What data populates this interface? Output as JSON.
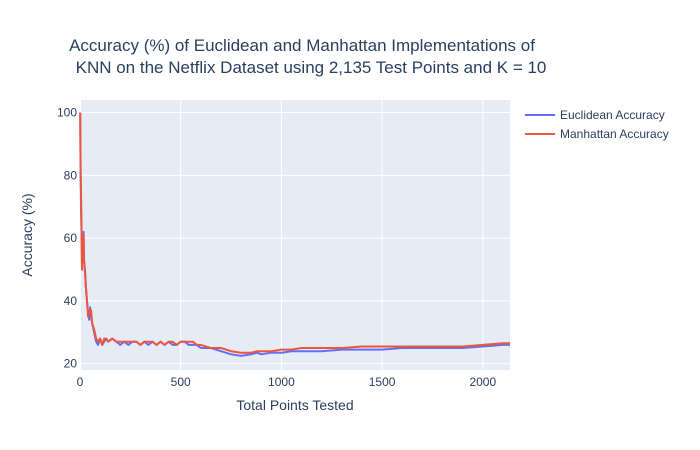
{
  "chart_data": {
    "type": "line",
    "title_lines": [
      "Accuracy (%) of Euclidean and Manhattan Implementations of",
      "KNN on the Netflix Dataset using 2,135 Test Points and K = 10"
    ],
    "xlabel": "Total Points Tested",
    "ylabel": "Accuracy (%)",
    "xlim": [
      0,
      2135
    ],
    "ylim": [
      18,
      104
    ],
    "x_ticks": [
      0,
      500,
      1000,
      1500,
      2000
    ],
    "y_ticks": [
      20,
      40,
      60,
      80,
      100
    ],
    "grid": true,
    "legend_position": "top-right",
    "background_color": "#e5ecf6",
    "series": [
      {
        "name": "Euclidean Accuracy",
        "color": "#636efa",
        "x": [
          1,
          2,
          3,
          5,
          8,
          10,
          12,
          15,
          18,
          20,
          25,
          30,
          35,
          40,
          45,
          50,
          55,
          60,
          70,
          80,
          90,
          100,
          110,
          120,
          130,
          140,
          160,
          180,
          200,
          220,
          240,
          260,
          280,
          300,
          320,
          340,
          360,
          380,
          400,
          420,
          440,
          460,
          480,
          500,
          520,
          540,
          560,
          580,
          600,
          650,
          700,
          750,
          800,
          850,
          880,
          900,
          950,
          1000,
          1050,
          1100,
          1200,
          1300,
          1400,
          1500,
          1600,
          1700,
          1800,
          1900,
          2000,
          2100,
          2135
        ],
        "y": [
          100,
          90,
          80,
          70,
          60,
          50,
          58,
          55,
          62,
          53,
          50,
          44,
          40,
          36,
          34,
          38,
          35,
          33,
          30,
          27,
          26,
          28,
          26,
          27,
          28,
          27,
          28,
          27,
          26,
          27,
          26,
          27,
          27,
          26,
          27,
          26,
          27,
          26,
          27,
          26,
          27,
          26,
          26,
          27,
          27,
          26,
          26,
          26,
          25,
          25,
          24,
          23,
          22.5,
          23,
          23.5,
          23,
          23.5,
          23.5,
          24,
          24,
          24,
          24.5,
          24.5,
          24.5,
          25,
          25,
          25,
          25,
          25.5,
          26,
          26
        ]
      },
      {
        "name": "Manhattan Accuracy",
        "color": "#ef553b",
        "x": [
          1,
          2,
          3,
          5,
          8,
          10,
          12,
          15,
          18,
          20,
          25,
          30,
          35,
          40,
          45,
          50,
          55,
          60,
          70,
          80,
          90,
          100,
          110,
          120,
          130,
          140,
          160,
          180,
          200,
          220,
          240,
          260,
          280,
          300,
          320,
          340,
          360,
          380,
          400,
          420,
          440,
          460,
          480,
          500,
          520,
          540,
          560,
          580,
          600,
          650,
          700,
          750,
          800,
          850,
          880,
          900,
          950,
          1000,
          1050,
          1100,
          1200,
          1300,
          1400,
          1500,
          1600,
          1700,
          1800,
          1900,
          2000,
          2100,
          2135
        ],
        "y": [
          100,
          90,
          82,
          75,
          62,
          50,
          60,
          54,
          61,
          53,
          49,
          44,
          40,
          35,
          37,
          36,
          37,
          33,
          31,
          28,
          27,
          28,
          26,
          28,
          28,
          27,
          28,
          27,
          27,
          27,
          27,
          27,
          27,
          26,
          27,
          27,
          27,
          26,
          27,
          26,
          27,
          27,
          26,
          27,
          27,
          27,
          27,
          26,
          26,
          25,
          25,
          24,
          23.5,
          23.5,
          24,
          24,
          24,
          24.5,
          24.5,
          25,
          25,
          25,
          25.5,
          25.5,
          25.5,
          25.5,
          25.5,
          25.5,
          26,
          26.5,
          26.5
        ]
      }
    ]
  }
}
